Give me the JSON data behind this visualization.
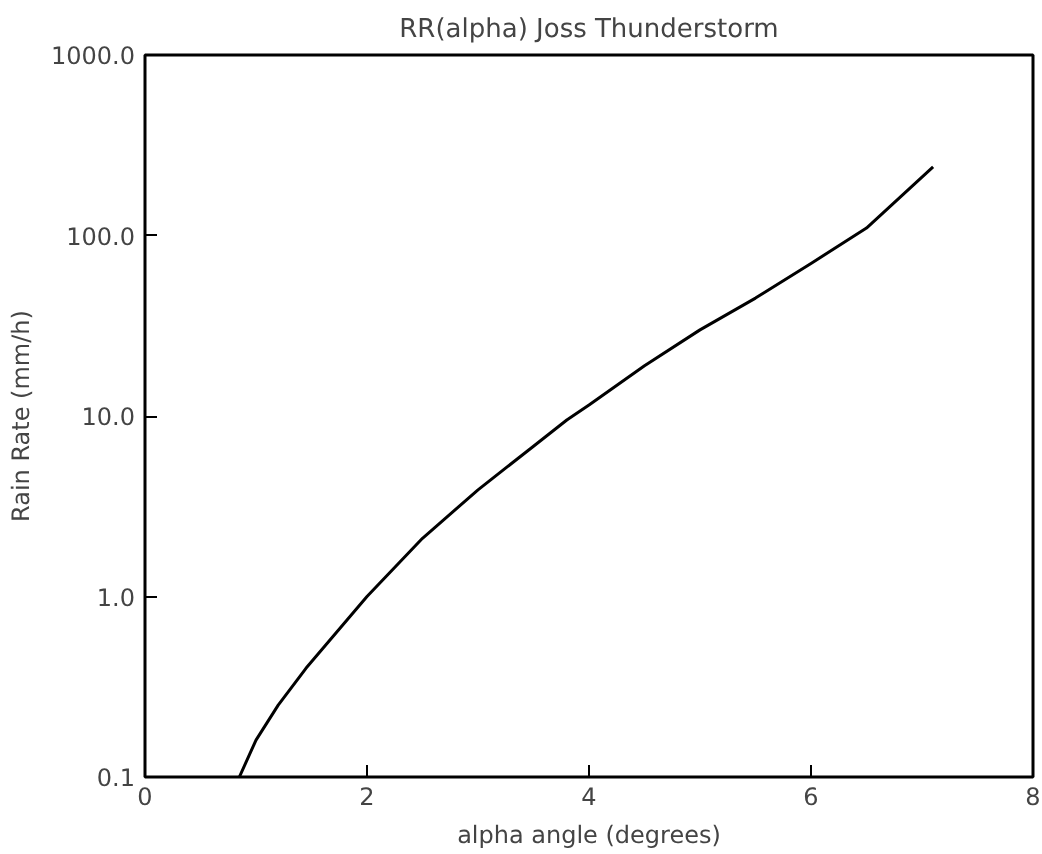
{
  "chart_data": {
    "type": "line",
    "title": "RR(alpha) Joss Thunderstorm",
    "xlabel": "alpha angle (degrees)",
    "ylabel": "Rain Rate (mm/h)",
    "log": "y",
    "grid": false,
    "x": [
      0.85,
      1.0,
      1.2,
      1.45,
      2.0,
      2.5,
      3.0,
      3.5,
      3.8,
      4.0,
      4.5,
      5.0,
      5.5,
      6.0,
      6.5,
      7.1
    ],
    "series": [
      {
        "color": "#000000",
        "values": [
          0.1,
          0.16,
          0.25,
          0.4,
          1.0,
          2.1,
          3.9,
          6.8,
          9.5,
          11.5,
          19,
          30,
          45,
          70,
          110,
          240
        ]
      }
    ],
    "xlim": [
      0,
      8
    ],
    "xticks": [
      0,
      2,
      4,
      6,
      8
    ],
    "ylim": [
      0.1,
      1000
    ],
    "yticks": [
      {
        "value": 0.1,
        "label": "0.1"
      },
      {
        "value": 1,
        "label": "1.0"
      },
      {
        "value": 10,
        "label": "10.0"
      },
      {
        "value": 100,
        "label": "100.0"
      },
      {
        "value": 1000,
        "label": "1000.0"
      }
    ]
  }
}
